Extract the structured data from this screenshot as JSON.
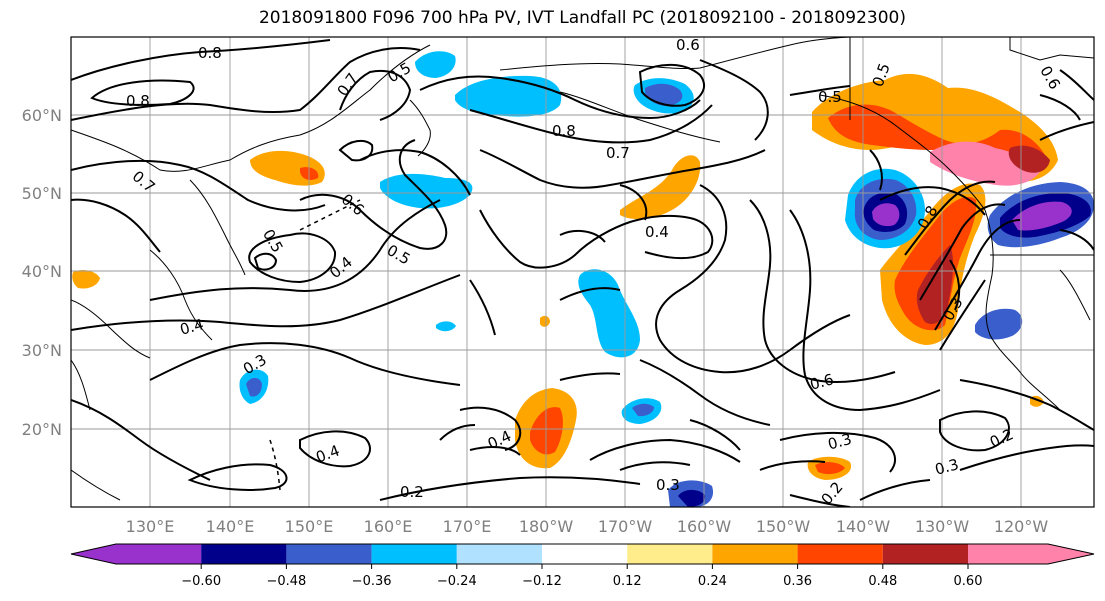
{
  "title": "2018091800 F096 700 hPa PV, IVT Landfall PC (2018092100 - 2018092300)",
  "lat_labels": [
    "60°N",
    "50°N",
    "40°N",
    "30°N",
    "20°N"
  ],
  "lon_labels": [
    "130°E",
    "140°E",
    "150°E",
    "160°E",
    "170°E",
    "180°W",
    "170°W",
    "160°W",
    "150°W",
    "140°W",
    "130°W",
    "120°W"
  ],
  "colorbar": {
    "tick_labels": [
      "−0.60",
      "−0.48",
      "−0.36",
      "−0.24",
      "−0.12",
      "0.12",
      "0.24",
      "0.36",
      "0.48",
      "0.60"
    ],
    "colors": [
      "#9932CC",
      "#00008B",
      "#3A5FCD",
      "#00BFFF",
      "#B0E2FF",
      "#FFFFFF",
      "#FFEC8B",
      "#FFA500",
      "#FF4500",
      "#B22222",
      "#FF82AB"
    ]
  },
  "contour_labels": [
    {
      "text": "0.8"
    },
    {
      "text": "0.8"
    },
    {
      "text": "0.7"
    },
    {
      "text": "0.5"
    },
    {
      "text": "0.7"
    },
    {
      "text": "0.6"
    },
    {
      "text": "0.8"
    },
    {
      "text": "0.7"
    },
    {
      "text": "0.5"
    },
    {
      "text": "0.6"
    },
    {
      "text": "0.6"
    },
    {
      "text": "0.4"
    },
    {
      "text": "0.5"
    },
    {
      "text": "0.4"
    },
    {
      "text": "0.4"
    },
    {
      "text": "0.3"
    },
    {
      "text": "0.4"
    },
    {
      "text": "0.2"
    },
    {
      "text": "0.4"
    },
    {
      "text": "0.3"
    },
    {
      "text": "0.6"
    },
    {
      "text": "0.3"
    },
    {
      "text": "0.2"
    },
    {
      "text": "0.3"
    },
    {
      "text": "0.2"
    },
    {
      "text": "0.8"
    },
    {
      "text": "0.3"
    },
    {
      "text": "0.5"
    },
    {
      "text": "0.5"
    }
  ]
}
